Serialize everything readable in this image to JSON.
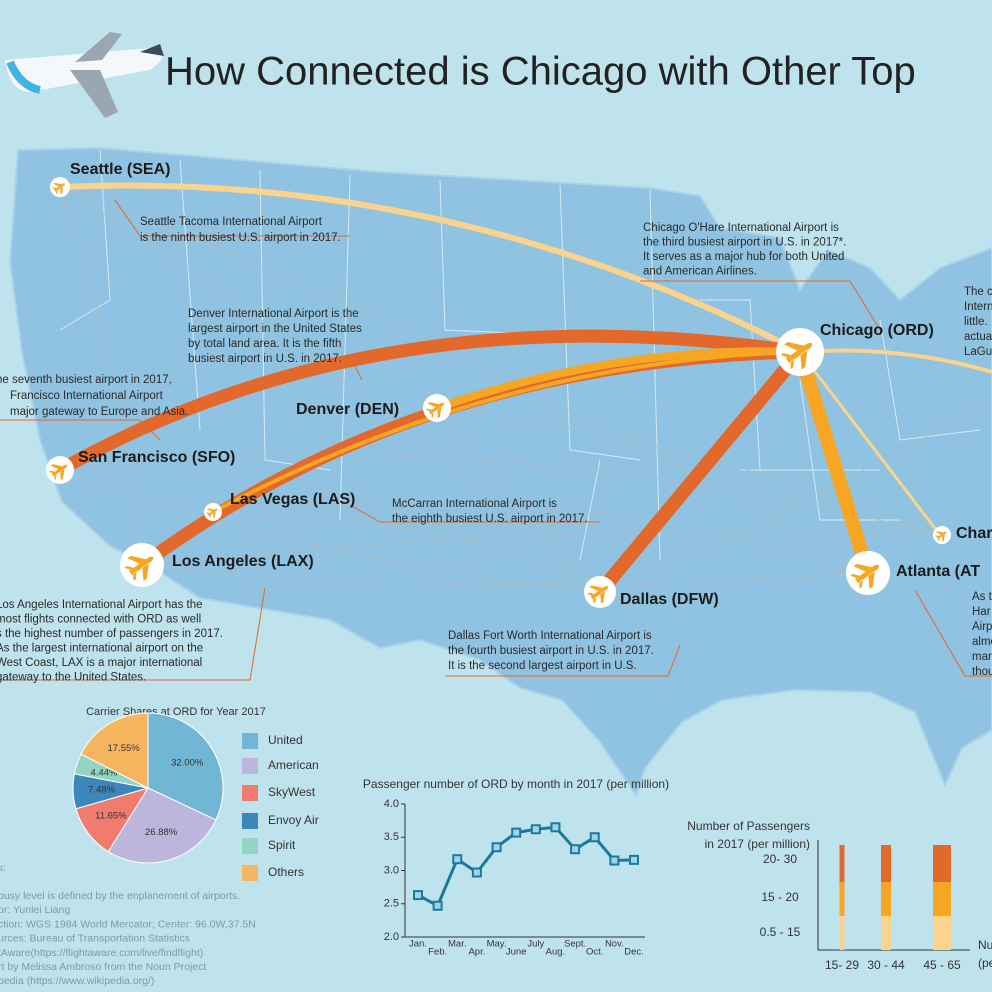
{
  "title": "How Connected is Chicago with Other Top",
  "map": {
    "airports": [
      {
        "label": "Seattle (SEA)",
        "description": [
          "Seattle Tacoma International Airport",
          "is the ninth busiest U.S. airport in 2017."
        ]
      },
      {
        "label": "Denver (DEN)",
        "description": [
          "Denver International Airport is the",
          "largest airport in the United States",
          "by total land area. It is the fifth",
          "busiest airport in U.S. in 2017."
        ]
      },
      {
        "label": "San Francisco (SFO)",
        "description": [
          "he seventh busiest airport in 2017,",
          "Francisco International Airport",
          "major gateway to Europe and Asia."
        ]
      },
      {
        "label": "Las Vegas (LAS)",
        "description": [
          "McCarran International Airport is",
          "the eighth busiest U.S. airport in 2017."
        ]
      },
      {
        "label": "Los Angeles (LAX)",
        "description": [
          "Los Angeles International Airport has the",
          "most flights connected with ORD as well",
          "s the highest number of passengers in 2017.",
          "As the largest international airport on the",
          "West Coast, LAX is a major international",
          "gateway to the United States."
        ]
      },
      {
        "label": "Chicago (ORD)",
        "description": [
          "Chicago O'Hare International Airport is",
          "the third busiest airport in U.S. in 2017*.",
          "It serves as a major hub for both United",
          "and American Airlines."
        ]
      },
      {
        "label": "Dallas (DFW)",
        "description": [
          "Dallas Fort Worth International Airport is",
          "the fourth busiest airport in U.S. in 2017.",
          "It is the second largest airport in U.S."
        ]
      },
      {
        "label": "Atlanta (AT",
        "description": [
          "As t",
          "Har",
          "Airp",
          "almo",
          "man",
          "thou"
        ]
      },
      {
        "label": "Char",
        "description": []
      }
    ],
    "fragments": [
      "The c",
      "Intern",
      "little.",
      "actua",
      "LaGu"
    ]
  },
  "chart_data": [
    {
      "type": "pie",
      "title": "Carrier Shares at ORD for Year 2017",
      "categories": [
        "United",
        "American",
        "SkyWest",
        "Envoy Air",
        "Spirit",
        "Others"
      ],
      "values": [
        32.0,
        26.88,
        11.65,
        7.48,
        4.44,
        17.55
      ],
      "value_labels": [
        "32.00%",
        "26.88%",
        "11.65%",
        "7.48%",
        "4.44%",
        "17.55%"
      ],
      "colors": [
        "#72b6d6",
        "#bcb5dc",
        "#f27b70",
        "#3d86bb",
        "#92d5c2",
        "#f8b560"
      ]
    },
    {
      "type": "line",
      "title": "Passenger number of ORD by month in 2017 (per million)",
      "categories": [
        "Jan.",
        "Feb.",
        "Mar.",
        "Apr.",
        "May.",
        "June",
        "July",
        "Aug.",
        "Sept.",
        "Oct.",
        "Nov.",
        "Dec."
      ],
      "values": [
        2.63,
        2.47,
        3.17,
        2.97,
        3.35,
        3.57,
        3.62,
        3.65,
        3.32,
        3.5,
        3.15,
        3.16
      ],
      "color": "#1b7a9c",
      "ylim": [
        2.0,
        4.0
      ],
      "yticks": [
        {
          "value": 2.0,
          "label": "2.0"
        },
        2.5,
        {
          "value": 3.0,
          "label": "3.0"
        },
        3.5,
        {
          "value": 4.0,
          "label": "4.0"
        }
      ]
    }
  ],
  "passenger_legend": {
    "title": [
      "Number of Passengers",
      "in 2017 (per million)"
    ],
    "rows": [
      "20- 30",
      "15 - 20",
      "0.5 - 15"
    ],
    "columns": [
      "15- 29",
      "30 - 44",
      "45 - 65"
    ],
    "fragments": [
      "Nu",
      "(pe"
    ]
  },
  "notes": [
    "s:",
    "busy level is defined by the enplanement of airports.",
    "or: Yunlei Liang",
    "ction: WGS 1984 World Mercator; Center: 96.0W,37.5N",
    "urces: Bureau of Transportation Statistics",
    "tAware(https://flightaware.com/live/findflight)",
    "rt by Melissa Ambroso from the Noun Project",
    "pedia (https://www.wikipedia.org/)"
  ]
}
